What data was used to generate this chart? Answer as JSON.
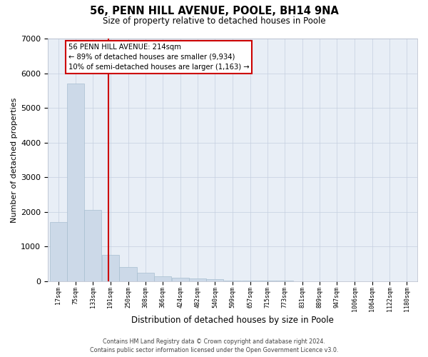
{
  "title1": "56, PENN HILL AVENUE, POOLE, BH14 9NA",
  "title2": "Size of property relative to detached houses in Poole",
  "xlabel": "Distribution of detached houses by size in Poole",
  "ylabel": "Number of detached properties",
  "bar_color": "#ccd9e8",
  "bar_edge_color": "#a8bfd0",
  "grid_color": "#c5cfe0",
  "background_color": "#e8eef6",
  "annotation_line_color": "#cc0000",
  "annotation_box_color": "#cc0000",
  "property_sqm": 214,
  "annotation_text_line1": "56 PENN HILL AVENUE: 214sqm",
  "annotation_text_line2": "← 89% of detached houses are smaller (9,934)",
  "annotation_text_line3": "10% of semi-detached houses are larger (1,163) →",
  "footer_line1": "Contains HM Land Registry data © Crown copyright and database right 2024.",
  "footer_line2": "Contains public sector information licensed under the Open Government Licence v3.0.",
  "bins": [
    "17sqm",
    "75sqm",
    "133sqm",
    "191sqm",
    "250sqm",
    "308sqm",
    "366sqm",
    "424sqm",
    "482sqm",
    "540sqm",
    "599sqm",
    "657sqm",
    "715sqm",
    "773sqm",
    "831sqm",
    "889sqm",
    "947sqm",
    "1006sqm",
    "1064sqm",
    "1122sqm",
    "1180sqm"
  ],
  "bin_edges": [
    17,
    75,
    133,
    191,
    250,
    308,
    366,
    424,
    482,
    540,
    599,
    657,
    715,
    773,
    831,
    889,
    947,
    1006,
    1064,
    1122,
    1180
  ],
  "bin_width": 58,
  "values": [
    1700,
    5700,
    2050,
    750,
    400,
    250,
    150,
    100,
    80,
    50,
    25,
    15,
    10,
    8,
    5,
    4,
    3,
    2,
    2,
    1,
    1
  ],
  "ylim": [
    0,
    7000
  ],
  "yticks": [
    0,
    1000,
    2000,
    3000,
    4000,
    5000,
    6000,
    7000
  ],
  "red_line_x": 214,
  "figsize": [
    6.0,
    5.0
  ],
  "dpi": 100
}
